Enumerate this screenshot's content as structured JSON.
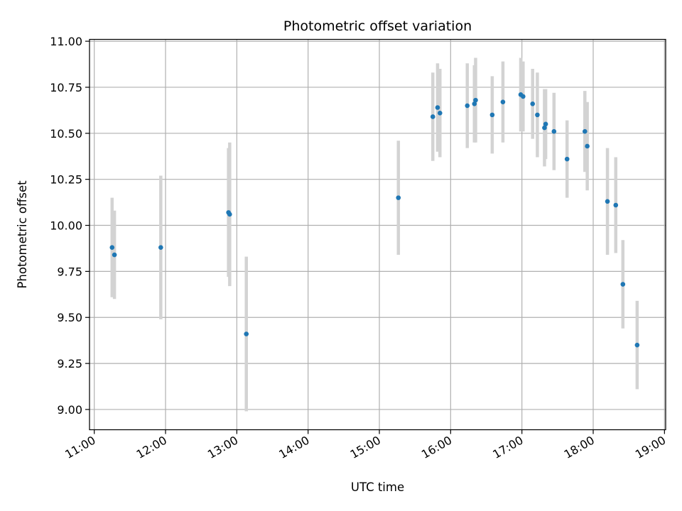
{
  "chart_data": {
    "type": "scatter",
    "title": "Photometric offset variation",
    "xlabel": "UTC time",
    "ylabel": "Photometric offset",
    "x_ticks": [
      "11:00",
      "12:00",
      "13:00",
      "14:00",
      "15:00",
      "16:00",
      "17:00",
      "18:00",
      "19:00"
    ],
    "y_ticks": [
      "9.00",
      "9.25",
      "9.50",
      "9.75",
      "10.00",
      "10.25",
      "10.50",
      "10.75",
      "11.00"
    ],
    "xlim": [
      "10:56",
      "19:01"
    ],
    "ylim": [
      8.89,
      11.01
    ],
    "grid": true,
    "colors": {
      "point": "#1f77b4",
      "errorbar": "#d3d3d3",
      "grid": "#b0b0b0"
    },
    "points": [
      {
        "x": "11:15",
        "y": 9.88,
        "yerr": 0.27
      },
      {
        "x": "11:17",
        "y": 9.84,
        "yerr": 0.24
      },
      {
        "x": "11:56",
        "y": 9.88,
        "yerr": 0.39
      },
      {
        "x": "12:53",
        "y": 10.07,
        "yerr": 0.35
      },
      {
        "x": "12:54",
        "y": 10.06,
        "yerr": 0.39
      },
      {
        "x": "13:08",
        "y": 9.41,
        "yerr": 0.42
      },
      {
        "x": "15:16",
        "y": 10.15,
        "yerr": 0.31
      },
      {
        "x": "15:45",
        "y": 10.59,
        "yerr": 0.24
      },
      {
        "x": "15:49",
        "y": 10.64,
        "yerr": 0.24
      },
      {
        "x": "15:51",
        "y": 10.61,
        "yerr": 0.24
      },
      {
        "x": "16:14",
        "y": 10.65,
        "yerr": 0.23
      },
      {
        "x": "16:20",
        "y": 10.66,
        "yerr": 0.21
      },
      {
        "x": "16:21",
        "y": 10.68,
        "yerr": 0.23
      },
      {
        "x": "16:35",
        "y": 10.6,
        "yerr": 0.21
      },
      {
        "x": "16:44",
        "y": 10.67,
        "yerr": 0.22
      },
      {
        "x": "16:59",
        "y": 10.71,
        "yerr": 0.2
      },
      {
        "x": "17:01",
        "y": 10.7,
        "yerr": 0.19
      },
      {
        "x": "17:09",
        "y": 10.66,
        "yerr": 0.19
      },
      {
        "x": "17:13",
        "y": 10.6,
        "yerr": 0.23
      },
      {
        "x": "17:19",
        "y": 10.53,
        "yerr": 0.21
      },
      {
        "x": "17:20",
        "y": 10.55,
        "yerr": 0.19
      },
      {
        "x": "17:27",
        "y": 10.51,
        "yerr": 0.21
      },
      {
        "x": "17:38",
        "y": 10.36,
        "yerr": 0.21
      },
      {
        "x": "17:53",
        "y": 10.51,
        "yerr": 0.22
      },
      {
        "x": "17:55",
        "y": 10.43,
        "yerr": 0.24
      },
      {
        "x": "18:12",
        "y": 10.13,
        "yerr": 0.29
      },
      {
        "x": "18:19",
        "y": 10.11,
        "yerr": 0.26
      },
      {
        "x": "18:25",
        "y": 9.68,
        "yerr": 0.24
      },
      {
        "x": "18:37",
        "y": 9.35,
        "yerr": 0.24
      }
    ]
  }
}
